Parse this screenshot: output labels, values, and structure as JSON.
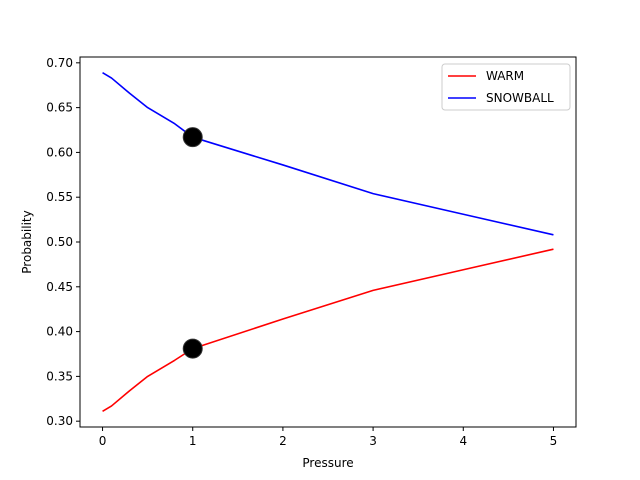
{
  "chart_data": {
    "type": "line",
    "title": "",
    "xlabel": "Pressure",
    "ylabel": "Probability",
    "xlim": [
      -0.25,
      5.25
    ],
    "ylim": [
      0.2935,
      0.7065
    ],
    "xticks": [
      0,
      1,
      2,
      3,
      4,
      5
    ],
    "xtick_labels": [
      "0",
      "1",
      "2",
      "3",
      "4",
      "5"
    ],
    "yticks": [
      0.3,
      0.35,
      0.4,
      0.45,
      0.5,
      0.55,
      0.6,
      0.65,
      0.7
    ],
    "ytick_labels": [
      "0.30",
      "0.35",
      "0.40",
      "0.45",
      "0.50",
      "0.55",
      "0.60",
      "0.65",
      "0.70"
    ],
    "grid": false,
    "legend_position": "top-right",
    "series": [
      {
        "name": "WARM",
        "color": "#ff0000",
        "x": [
          0,
          0.1,
          0.3,
          0.5,
          0.8,
          1.0,
          2.0,
          3.0,
          4.0,
          5.0
        ],
        "y": [
          0.311,
          0.317,
          0.334,
          0.35,
          0.368,
          0.381,
          0.414,
          0.446,
          0.469,
          0.492
        ]
      },
      {
        "name": "SNOWBALL",
        "color": "#0000ff",
        "x": [
          0,
          0.1,
          0.3,
          0.5,
          0.8,
          1.0,
          2.0,
          3.0,
          4.0,
          5.0
        ],
        "y": [
          0.689,
          0.683,
          0.666,
          0.65,
          0.632,
          0.617,
          0.586,
          0.554,
          0.531,
          0.508
        ]
      }
    ],
    "markers": [
      {
        "x": 1.0,
        "y": 0.381,
        "color": "#000000"
      },
      {
        "x": 1.0,
        "y": 0.617,
        "color": "#000000"
      }
    ]
  }
}
